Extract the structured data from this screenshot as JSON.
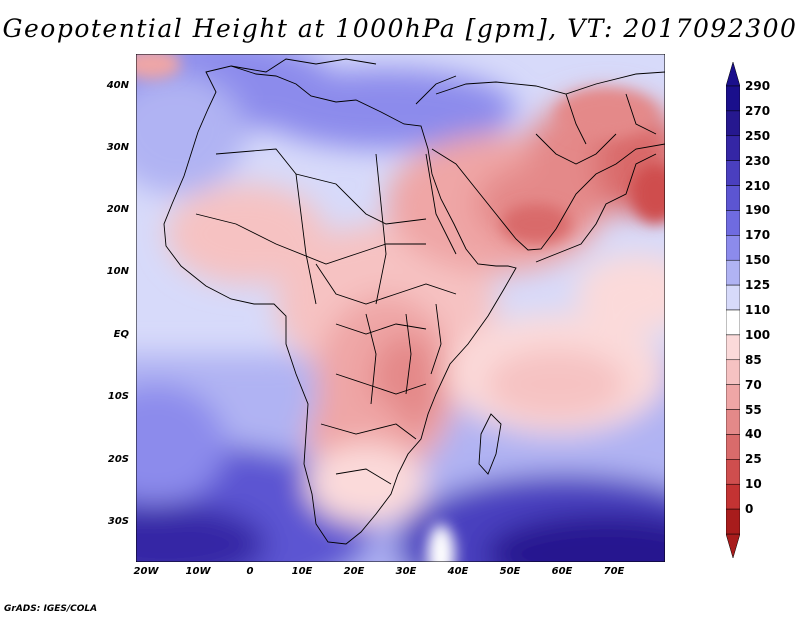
{
  "title": "Geopotential Height at 1000hPa [gpm], VT: 2017092300",
  "credit": "GrADS: IGES/COLA",
  "map": {
    "region": "Africa, Middle East and Indian Ocean",
    "lat_labels": [
      "40N",
      "30N",
      "20N",
      "10N",
      "EQ",
      "10S",
      "20S",
      "30S"
    ],
    "lon_labels": [
      "20W",
      "10W",
      "0",
      "10E",
      "20E",
      "30E",
      "40E",
      "50E",
      "60E",
      "70E"
    ]
  },
  "colorbar": {
    "levels": [
      "290",
      "270",
      "250",
      "230",
      "210",
      "190",
      "170",
      "150",
      "125",
      "110",
      "100",
      "85",
      "70",
      "55",
      "40",
      "25",
      "10",
      "0"
    ],
    "colors": [
      "#1a0f8c",
      "#26188f",
      "#3426a5",
      "#4a3fbf",
      "#5c55d2",
      "#6f6be0",
      "#8c8bec",
      "#b0b3f3",
      "#d7dafa",
      "#ffffff",
      "#fbdada",
      "#f6c2c2",
      "#efa6a6",
      "#e48989",
      "#d96b6b",
      "#cf4e4e",
      "#c33333",
      "#a81c1c"
    ]
  }
}
